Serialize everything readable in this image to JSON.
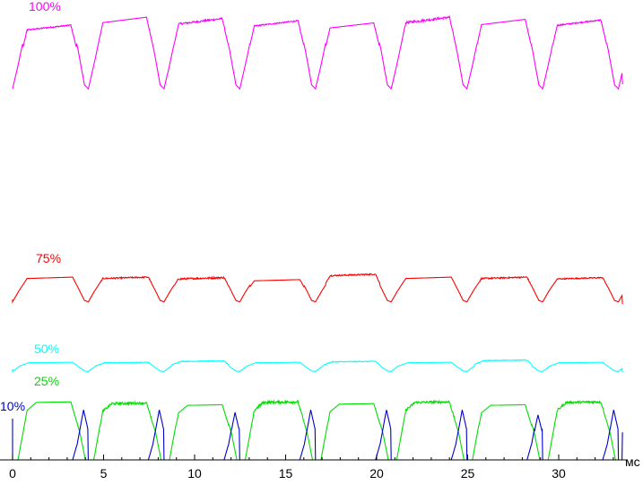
{
  "chart_data": {
    "type": "line",
    "xlabel": "мс",
    "xlim": [
      0,
      33.5
    ],
    "x_ticks": [
      0,
      5,
      10,
      15,
      20,
      25,
      30
    ],
    "ylim": [
      0,
      1
    ],
    "grid": false,
    "axis_color": "#000000",
    "period": 4.16,
    "series": [
      {
        "name": "100%",
        "color": "#ff00ff",
        "baseline": 0.81,
        "amplitude": 0.17,
        "start": [
          0,
          0.81
        ],
        "shape": [
          [
            0.0,
            0.0
          ],
          [
            0.3,
            0.3
          ],
          [
            0.8,
            0.85
          ],
          [
            3.2,
            0.92
          ],
          [
            3.6,
            0.5
          ],
          [
            3.95,
            0.05
          ],
          [
            4.16,
            0.0
          ]
        ],
        "peaks": [
          0.89,
          1.0,
          0.98,
          0.95,
          0.92,
          1.0,
          0.97,
          0.96
        ],
        "noise": [
          0.04,
          0.0,
          0.06,
          0.04,
          0.0,
          0.07,
          0.0,
          0.04
        ],
        "end": [
          33.5,
          0.82
        ]
      },
      {
        "name": "75%",
        "color": "#ff0000",
        "baseline": 0.345,
        "amplitude": 0.06,
        "start": [
          0,
          0.35
        ],
        "shape": [
          [
            0.0,
            0.0
          ],
          [
            0.35,
            0.4
          ],
          [
            0.8,
            0.85
          ],
          [
            3.3,
            0.9
          ],
          [
            3.65,
            0.45
          ],
          [
            3.95,
            0.05
          ],
          [
            4.16,
            0.0
          ]
        ],
        "peaks": [
          1.0,
          1.0,
          0.98,
          0.9,
          1.12,
          1.0,
          1.0,
          0.98
        ],
        "noise": [
          0.0,
          0.12,
          0.15,
          0.0,
          0.12,
          0.0,
          0.12,
          0.1
        ],
        "end": [
          33.5,
          0.34
        ]
      },
      {
        "name": "50%",
        "color": "#00ffff",
        "baseline": 0.193,
        "amplitude": 0.02,
        "start": [
          0,
          0.198
        ],
        "shape": [
          [
            0.0,
            0.0
          ],
          [
            0.4,
            0.6
          ],
          [
            0.9,
            0.95
          ],
          [
            3.3,
            1.0
          ],
          [
            3.7,
            0.4
          ],
          [
            3.95,
            0.05
          ],
          [
            4.16,
            0.0
          ]
        ],
        "peaks": [
          1.0,
          1.0,
          1.15,
          1.0,
          1.1,
          1.0,
          1.25,
          1.0
        ],
        "noise": [
          0.0,
          0.15,
          0.2,
          0.0,
          0.2,
          0.0,
          0.2,
          0.0
        ],
        "end": [
          33.5,
          0.191
        ]
      },
      {
        "name": "25%",
        "color": "#00dd00",
        "baseline": 0.0,
        "amplitude": 0.132,
        "start": [
          0,
          0.0
        ],
        "shape": [
          [
            0.0,
            0.0
          ],
          [
            0.3,
            0.0
          ],
          [
            0.8,
            0.82
          ],
          [
            1.3,
            0.95
          ],
          [
            3.2,
            0.96
          ],
          [
            3.7,
            0.45
          ],
          [
            4.0,
            0.0
          ],
          [
            4.16,
            0.0
          ]
        ],
        "peaks": [
          1.0,
          0.98,
          0.95,
          1.0,
          0.97,
          1.0,
          0.95,
          1.0
        ],
        "noise": [
          0.0,
          0.1,
          0.0,
          0.12,
          0.0,
          0.1,
          0.0,
          0.1
        ],
        "end": [
          33.5,
          0.0
        ]
      },
      {
        "name": "10%",
        "color": "#0000cc",
        "baseline": 0.0,
        "amplitude": 0.115,
        "start": [
          0,
          0.09
        ],
        "shape": [
          [
            0.0,
            0.0
          ],
          [
            3.3,
            0.0
          ],
          [
            3.55,
            0.3
          ],
          [
            3.9,
            0.95
          ],
          [
            4.16,
            0.55
          ]
        ],
        "peaks": [
          1.0,
          1.0,
          0.95,
          1.0,
          1.0,
          1.0,
          0.9,
          1.0
        ],
        "noise": [
          0.0,
          0.0,
          0.0,
          0.0,
          0.0,
          0.0,
          0.0,
          0.0
        ],
        "end": [
          33.5,
          0.06
        ]
      }
    ]
  }
}
